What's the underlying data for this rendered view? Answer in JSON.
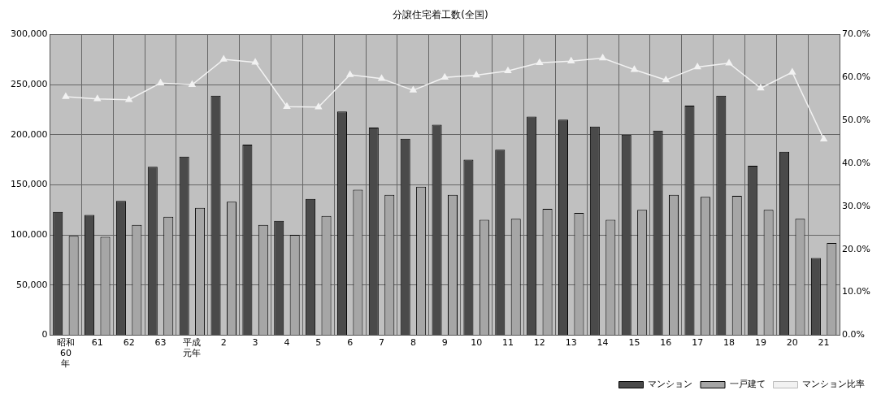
{
  "chart_data": {
    "type": "bar",
    "title": "分譲住宅着工数(全国)",
    "categories": [
      "昭和60年",
      "61",
      "62",
      "63",
      "平成元年",
      "2",
      "3",
      "4",
      "5",
      "6",
      "7",
      "8",
      "9",
      "10",
      "11",
      "12",
      "13",
      "14",
      "15",
      "16",
      "17",
      "18",
      "19",
      "20",
      "21"
    ],
    "series": [
      {
        "name": "マンション",
        "color": "#4a4a4a",
        "values": [
          123000,
          120000,
          134000,
          168000,
          178000,
          239000,
          190000,
          114000,
          136000,
          223000,
          207000,
          196000,
          210000,
          175000,
          185000,
          218000,
          215000,
          208000,
          200000,
          204000,
          229000,
          239000,
          169000,
          183000,
          77000
        ]
      },
      {
        "name": "一戸建て",
        "color": "#a6a6a6",
        "values": [
          99000,
          98000,
          110000,
          118000,
          127000,
          133000,
          110000,
          100000,
          119000,
          145000,
          140000,
          148000,
          140000,
          115000,
          116000,
          126000,
          122000,
          115000,
          125000,
          140000,
          138000,
          139000,
          125000,
          116000,
          92000
        ]
      },
      {
        "name": "マンション比率",
        "type": "line",
        "axis": "y2",
        "color": "#f2f2f2",
        "values": [
          55.5,
          55.0,
          54.8,
          58.7,
          58.3,
          64.2,
          63.5,
          53.2,
          53.1,
          60.6,
          59.7,
          57.0,
          60.0,
          60.5,
          61.5,
          63.4,
          63.8,
          64.5,
          61.8,
          59.4,
          62.4,
          63.3,
          57.5,
          61.2,
          45.6
        ]
      }
    ],
    "ylim": [
      0,
      300000
    ],
    "yticks": [
      {
        "value": 0,
        "label": "0"
      },
      {
        "value": 50000,
        "label": "50,000"
      },
      {
        "value": 100000,
        "label": "100,000"
      },
      {
        "value": 150000,
        "label": "150,000"
      },
      {
        "value": 200000,
        "label": "200,000"
      },
      {
        "value": 250000,
        "label": "250,000"
      },
      {
        "value": 300000,
        "label": "300,000"
      }
    ],
    "y2lim": [
      0,
      70
    ],
    "y2ticks": [
      {
        "value": 0,
        "label": "0.0%"
      },
      {
        "value": 10,
        "label": "10.0%"
      },
      {
        "value": 20,
        "label": "20.0%"
      },
      {
        "value": 30,
        "label": "30.0%"
      },
      {
        "value": 40,
        "label": "40.0%"
      },
      {
        "value": 50,
        "label": "50.0%"
      },
      {
        "value": 60,
        "label": "60.0%"
      },
      {
        "value": 70,
        "label": "70.0%"
      }
    ],
    "grid": true,
    "legend": "bottom right",
    "marker": "triangle",
    "line_style": "solid"
  }
}
